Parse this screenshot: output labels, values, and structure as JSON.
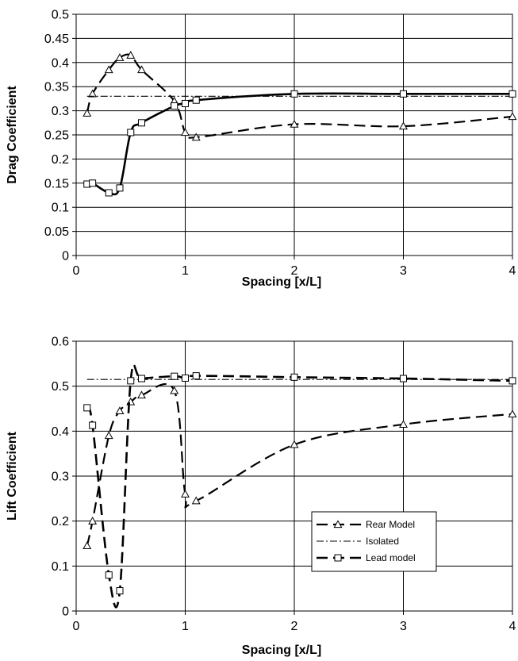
{
  "chart_data": [
    {
      "type": "line",
      "title": "",
      "xlabel": "Spacing [x/L]",
      "ylabel": "Drag Coefficient",
      "xlim": [
        0,
        4
      ],
      "ylim": [
        0,
        0.5
      ],
      "x_ticks": [
        "0",
        "1",
        "2",
        "3",
        "4"
      ],
      "y_ticks": [
        "0",
        "0.05",
        "0.1",
        "0.15",
        "0.2",
        "0.25",
        "0.3",
        "0.35",
        "0.4",
        "0.45",
        "0.5"
      ],
      "grid": true,
      "legend": false,
      "series": [
        {
          "name": "Rear Model",
          "style": "dashed-triangle",
          "x": [
            0.1,
            0.15,
            0.3,
            0.4,
            0.5,
            0.6,
            0.9,
            1.0,
            1.1,
            2.0,
            3.0,
            4.0
          ],
          "y": [
            0.295,
            0.335,
            0.385,
            0.41,
            0.415,
            0.385,
            0.32,
            0.255,
            0.245,
            0.272,
            0.268,
            0.288
          ]
        },
        {
          "name": "Isolated",
          "style": "dash-dot",
          "x": [
            0.1,
            4.0
          ],
          "y": [
            0.33,
            0.33
          ]
        },
        {
          "name": "Lead model",
          "style": "solid-square",
          "x": [
            0.1,
            0.15,
            0.3,
            0.4,
            0.5,
            0.6,
            0.9,
            1.0,
            1.1,
            2.0,
            3.0,
            4.0
          ],
          "y": [
            0.148,
            0.15,
            0.13,
            0.14,
            0.255,
            0.275,
            0.31,
            0.315,
            0.322,
            0.335,
            0.335,
            0.335
          ]
        }
      ]
    },
    {
      "type": "line",
      "title": "",
      "xlabel": "Spacing [x/L]",
      "ylabel": "Lift Coefficient",
      "xlim": [
        0,
        4
      ],
      "ylim": [
        0,
        0.6
      ],
      "x_ticks": [
        "0",
        "1",
        "2",
        "3",
        "4"
      ],
      "y_ticks": [
        "0",
        "0.1",
        "0.2",
        "0.3",
        "0.4",
        "0.5",
        "0.6"
      ],
      "grid": true,
      "legend": true,
      "legend_position": "bottom-right",
      "series": [
        {
          "name": "Rear Model",
          "style": "dashed-triangle",
          "x": [
            0.1,
            0.15,
            0.3,
            0.4,
            0.5,
            0.6,
            0.9,
            1.0,
            1.1,
            2.0,
            3.0,
            4.0
          ],
          "y": [
            0.145,
            0.2,
            0.39,
            0.445,
            0.465,
            0.48,
            0.49,
            0.26,
            0.245,
            0.37,
            0.415,
            0.438
          ]
        },
        {
          "name": "Isolated",
          "style": "dash-dot",
          "x": [
            0.1,
            4.0
          ],
          "y": [
            0.515,
            0.515
          ]
        },
        {
          "name": "Lead model",
          "style": "dashed-square",
          "x": [
            0.1,
            0.15,
            0.3,
            0.4,
            0.5,
            0.6,
            0.9,
            1.0,
            1.1,
            2.0,
            3.0,
            4.0
          ],
          "y": [
            0.452,
            0.413,
            0.08,
            0.045,
            0.512,
            0.517,
            0.522,
            0.518,
            0.523,
            0.52,
            0.517,
            0.512
          ]
        }
      ]
    }
  ]
}
